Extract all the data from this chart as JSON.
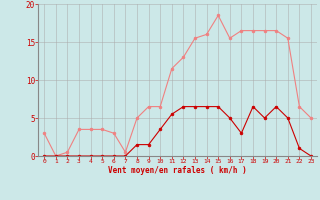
{
  "x": [
    0,
    1,
    2,
    3,
    4,
    5,
    6,
    7,
    8,
    9,
    10,
    11,
    12,
    13,
    14,
    15,
    16,
    17,
    18,
    19,
    20,
    21,
    22,
    23
  ],
  "y_rafales": [
    3.0,
    0.0,
    0.5,
    3.5,
    3.5,
    3.5,
    3.0,
    0.5,
    5.0,
    6.5,
    6.5,
    11.5,
    13.0,
    15.5,
    16.0,
    18.5,
    15.5,
    16.5,
    16.5,
    16.5,
    16.5,
    15.5,
    6.5,
    5.0
  ],
  "y_moyen": [
    0.0,
    0.0,
    0.0,
    0.0,
    0.0,
    0.0,
    0.0,
    0.0,
    1.5,
    1.5,
    3.5,
    5.5,
    6.5,
    6.5,
    6.5,
    6.5,
    5.0,
    3.0,
    6.5,
    5.0,
    6.5,
    5.0,
    1.0,
    0.0
  ],
  "color_rafales": "#f08080",
  "color_moyen": "#cc0000",
  "background": "#cce8e8",
  "grid_color": "#aaaaaa",
  "xlabel": "Vent moyen/en rafales ( km/h )",
  "xlabel_color": "#cc0000",
  "tick_color": "#cc0000",
  "spine_color": "#888888",
  "ylim": [
    0,
    20
  ],
  "xlim": [
    -0.5,
    23.5
  ],
  "yticks": [
    0,
    5,
    10,
    15,
    20
  ],
  "xticks": [
    0,
    1,
    2,
    3,
    4,
    5,
    6,
    7,
    8,
    9,
    10,
    11,
    12,
    13,
    14,
    15,
    16,
    17,
    18,
    19,
    20,
    21,
    22,
    23
  ]
}
